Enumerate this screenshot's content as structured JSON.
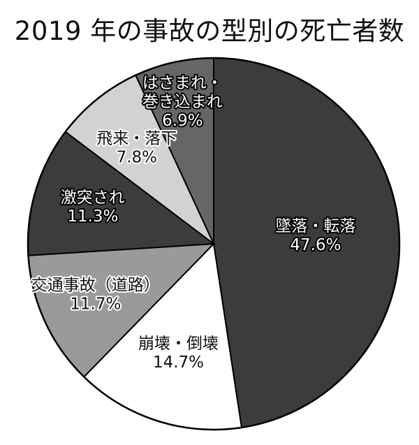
{
  "chart_data": {
    "type": "pie",
    "title": "2019 年の事故の型別の死亡者数",
    "slices": [
      {
        "label": "墜落・転落",
        "value_label": "47.6%",
        "value": 47.6,
        "color": "#3c3c3c",
        "text_color": "#ffffff",
        "outline": "#000000"
      },
      {
        "label": "崩壊・倒壊",
        "value_label": "14.7%",
        "value": 14.7,
        "color": "#ffffff",
        "text_color": "#111111",
        "outline": "#ffffff"
      },
      {
        "label": "交通事故（道路）",
        "value_label": "11.7%",
        "value": 11.7,
        "color": "#9a9a9a",
        "text_color": "#111111",
        "outline": "#ffffff"
      },
      {
        "label": "激突され",
        "value_label": "11.3%",
        "value": 11.3,
        "color": "#3c3c3c",
        "text_color": "#ffffff",
        "outline": "#000000"
      },
      {
        "label": "飛来・落下",
        "value_label": "7.8%",
        "value": 7.8,
        "color": "#d2d2d2",
        "text_color": "#111111",
        "outline": "#ffffff"
      },
      {
        "label": "はさまれ・巻き込まれ",
        "label_lines": [
          "はさまれ・",
          "巻き込まれ"
        ],
        "value_label": "6.9%",
        "value": 6.9,
        "color": "#666666",
        "text_color": "#ffffff",
        "outline": "#000000"
      }
    ],
    "start": "12 o'clock",
    "direction": "clockwise"
  }
}
